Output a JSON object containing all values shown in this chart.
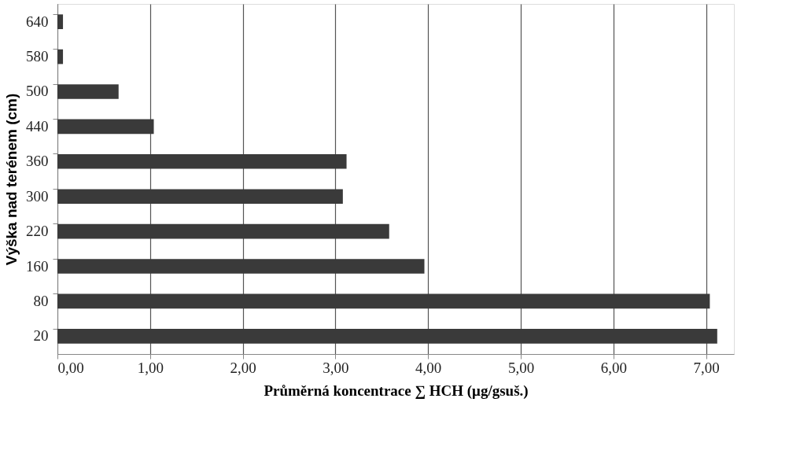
{
  "chart_data": {
    "type": "bar",
    "orientation": "horizontal",
    "xlabel": "Průměrná  koncentrace ∑ HCH (μg/gsuš.)",
    "ylabel": "Výška nad terénem (cm)",
    "categories": [
      "640",
      "580",
      "500",
      "440",
      "360",
      "300",
      "220",
      "160",
      "80",
      "20"
    ],
    "values": [
      0.06,
      0.06,
      0.66,
      1.04,
      3.12,
      3.08,
      3.58,
      3.96,
      7.04,
      7.12
    ],
    "color": "#3a3a3a",
    "xlim": [
      0,
      7.3
    ],
    "xticks": [
      {
        "value": 0,
        "label": "0,00"
      },
      {
        "value": 1,
        "label": "1,00"
      },
      {
        "value": 2,
        "label": "2,00"
      },
      {
        "value": 3,
        "label": "3,00"
      },
      {
        "value": 4,
        "label": "4,00"
      },
      {
        "value": 5,
        "label": "5,00"
      },
      {
        "value": 6,
        "label": "6,00"
      },
      {
        "value": 7,
        "label": "7,00"
      }
    ],
    "grid": "x"
  }
}
